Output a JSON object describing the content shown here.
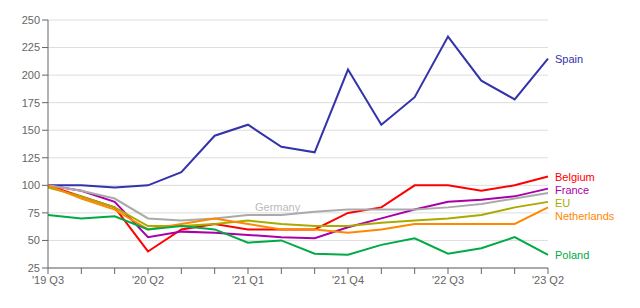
{
  "chart_data": {
    "type": "line",
    "categories": [
      "'19 Q3",
      null,
      null,
      "'20 Q2",
      null,
      null,
      "'21 Q1",
      null,
      null,
      "'21 Q4",
      null,
      null,
      "'22 Q3",
      null,
      null,
      "'23 Q2"
    ],
    "series": [
      {
        "name": "Spain",
        "color": "#3333aa",
        "values": [
          100,
          100,
          98,
          100,
          112,
          145,
          155,
          135,
          130,
          205,
          155,
          180,
          235,
          195,
          178,
          215
        ]
      },
      {
        "name": "Belgium",
        "color": "#ff0000",
        "values": [
          100,
          90,
          80,
          40,
          60,
          65,
          60,
          60,
          60,
          75,
          80,
          100,
          100,
          95,
          100,
          108
        ]
      },
      {
        "name": "France",
        "color": "#aa00aa",
        "values": [
          100,
          95,
          85,
          53,
          58,
          57,
          55,
          53,
          52,
          62,
          70,
          78,
          85,
          87,
          90,
          97
        ]
      },
      {
        "name": "Germany",
        "color": "#aaaaaa",
        "values": [
          100,
          95,
          88,
          70,
          68,
          70,
          73,
          73,
          76,
          78,
          78,
          78,
          80,
          83,
          88,
          93
        ]
      },
      {
        "name": "EU",
        "color": "#aaaa00",
        "values": [
          98,
          90,
          80,
          63,
          63,
          65,
          68,
          65,
          63,
          63,
          66,
          68,
          70,
          73,
          80,
          85
        ]
      },
      {
        "name": "Netherlands",
        "color": "#ff8800",
        "values": [
          100,
          88,
          78,
          60,
          65,
          70,
          65,
          60,
          60,
          57,
          60,
          65,
          65,
          65,
          65,
          80
        ]
      },
      {
        "name": "Poland",
        "color": "#00aa44",
        "values": [
          73,
          70,
          72,
          60,
          63,
          60,
          48,
          50,
          38,
          37,
          46,
          52,
          38,
          43,
          53,
          37
        ]
      }
    ],
    "annotations": [
      {
        "text": "Spain",
        "x": 15,
        "y": 215,
        "color": "#3333aa"
      },
      {
        "text": "Belgium",
        "x": 15,
        "y": 108,
        "color": "#ff0000"
      },
      {
        "text": "France",
        "x": 15,
        "y": 97,
        "color": "#aa00aa"
      },
      {
        "text": "EU",
        "x": 15,
        "y": 85,
        "color": "#aaaa00"
      },
      {
        "text": "Netherlands",
        "x": 15,
        "y": 80,
        "color": "#ff8800"
      },
      {
        "text": "Poland",
        "x": 15,
        "y": 37,
        "color": "#00aa44"
      },
      {
        "text": "Germany",
        "x": 6,
        "y": 80,
        "color": "#bbbbbb"
      }
    ],
    "ylim": [
      25,
      250
    ],
    "yticks": [
      25,
      50,
      75,
      100,
      125,
      150,
      175,
      200,
      225,
      250
    ],
    "grid": true
  }
}
